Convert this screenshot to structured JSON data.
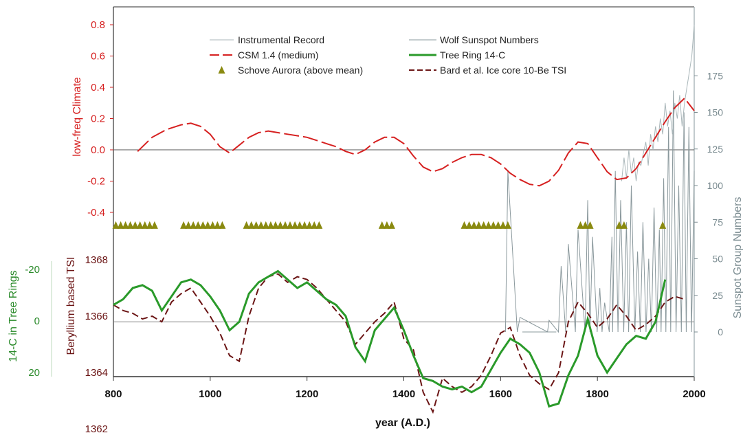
{
  "chart_data": {
    "type": "line",
    "xlabel": "year (A.D.)",
    "x_ticks": [
      800,
      1000,
      1200,
      1400,
      1600,
      1800,
      2000
    ],
    "xlim": [
      800,
      2000
    ],
    "axes": {
      "climate": {
        "label": "low-freq Climate",
        "color": "#d62020",
        "ylim": [
          -0.45,
          0.85
        ],
        "ticks": [
          "0.8",
          "0.6",
          "0.4",
          "0.2",
          "0.0",
          "-0.2",
          "-0.4"
        ],
        "tick_values": [
          0.8,
          0.6,
          0.4,
          0.2,
          0.0,
          -0.2,
          -0.4
        ]
      },
      "tsi": {
        "label": "Beryllium based TSI",
        "color": "#6b1515",
        "ylim": [
          1361.2,
          1368.4
        ],
        "ticks": [
          "1368",
          "1366",
          "1364",
          "1362"
        ],
        "tick_values": [
          1368,
          1366,
          1364,
          1362
        ]
      },
      "c14": {
        "label": "14-C in Tree Rings",
        "color": "#2a8a2a",
        "ticks": [
          "-20",
          "0",
          "20"
        ],
        "tick_values": [
          -20,
          0,
          20
        ],
        "inverted": true
      },
      "sunspot": {
        "label": "Sunspot Group Numbers",
        "color": "#7a8b90",
        "ylim": [
          -35,
          190
        ],
        "ticks": [
          "175",
          "150",
          "125",
          "100",
          "75",
          "50",
          "25",
          "0"
        ],
        "tick_values": [
          175,
          150,
          125,
          100,
          75,
          50,
          25,
          0
        ]
      }
    },
    "legend": {
      "placement": "top",
      "entries": [
        {
          "label": "Instrumental Record",
          "color": "#a9b6b9",
          "style": "thin"
        },
        {
          "label": "Wolf Sunspot Numbers",
          "color": "#8a989c",
          "style": "thin"
        },
        {
          "label": "CSM 1.4 (medium)",
          "color": "#d62020",
          "style": "long-dash"
        },
        {
          "label": "Tree Ring 14-C",
          "color": "#2a9a2a",
          "style": "solid-thick"
        },
        {
          "label": "Schove Aurora (above mean)",
          "color": "#8a8a10",
          "style": "triangle"
        },
        {
          "label": "Bard et al. Ice core 10-Be TSI",
          "color": "#6b1515",
          "style": "dash"
        }
      ]
    },
    "series": {
      "csm": {
        "axis": "climate",
        "x": [
          850,
          880,
          910,
          940,
          960,
          980,
          1000,
          1020,
          1040,
          1060,
          1080,
          1100,
          1120,
          1140,
          1160,
          1180,
          1200,
          1220,
          1240,
          1260,
          1280,
          1300,
          1320,
          1340,
          1360,
          1380,
          1400,
          1420,
          1440,
          1460,
          1480,
          1500,
          1520,
          1540,
          1560,
          1580,
          1600,
          1620,
          1640,
          1660,
          1680,
          1700,
          1720,
          1740,
          1760,
          1780,
          1800,
          1820,
          1840,
          1860,
          1880,
          1900,
          1920,
          1940,
          1960,
          1980,
          2000
        ],
        "y": [
          -0.01,
          0.08,
          0.13,
          0.16,
          0.17,
          0.15,
          0.1,
          0.02,
          -0.02,
          0.03,
          0.08,
          0.11,
          0.12,
          0.11,
          0.1,
          0.09,
          0.08,
          0.06,
          0.04,
          0.02,
          -0.01,
          -0.03,
          0.0,
          0.05,
          0.08,
          0.08,
          0.04,
          -0.04,
          -0.11,
          -0.14,
          -0.12,
          -0.08,
          -0.05,
          -0.03,
          -0.03,
          -0.05,
          -0.09,
          -0.15,
          -0.19,
          -0.22,
          -0.23,
          -0.2,
          -0.13,
          -0.02,
          0.05,
          0.04,
          -0.05,
          -0.14,
          -0.19,
          -0.18,
          -0.12,
          -0.02,
          0.08,
          0.18,
          0.27,
          0.33,
          0.25
        ]
      },
      "tree_ring": {
        "axis": "tsi",
        "x": [
          800,
          820,
          840,
          860,
          880,
          900,
          920,
          940,
          960,
          980,
          1000,
          1020,
          1040,
          1060,
          1080,
          1100,
          1120,
          1140,
          1160,
          1180,
          1200,
          1220,
          1240,
          1260,
          1280,
          1300,
          1320,
          1340,
          1360,
          1380,
          1400,
          1420,
          1440,
          1460,
          1480,
          1500,
          1520,
          1540,
          1560,
          1580,
          1600,
          1620,
          1640,
          1660,
          1680,
          1700,
          1720,
          1740,
          1760,
          1780,
          1800,
          1820,
          1840,
          1860,
          1880,
          1900,
          1920,
          1940
        ],
        "y": [
          1366.4,
          1366.6,
          1367.0,
          1367.1,
          1366.9,
          1366.2,
          1366.7,
          1367.2,
          1367.3,
          1367.1,
          1366.7,
          1366.2,
          1365.5,
          1365.8,
          1366.8,
          1367.2,
          1367.4,
          1367.6,
          1367.3,
          1367.0,
          1367.2,
          1366.9,
          1366.6,
          1366.4,
          1366.0,
          1364.9,
          1364.4,
          1365.5,
          1365.9,
          1366.3,
          1365.5,
          1364.6,
          1363.8,
          1363.7,
          1363.5,
          1363.4,
          1363.5,
          1363.3,
          1363.5,
          1364.1,
          1364.7,
          1365.2,
          1365.0,
          1364.7,
          1364.0,
          1362.8,
          1362.9,
          1363.9,
          1364.6,
          1365.9,
          1364.6,
          1364.0,
          1364.5,
          1365.0,
          1365.3,
          1365.2,
          1365.8,
          1367.3
        ]
      },
      "bard_tsi": {
        "axis": "tsi",
        "x": [
          800,
          820,
          840,
          860,
          880,
          900,
          920,
          940,
          960,
          980,
          1000,
          1020,
          1040,
          1060,
          1080,
          1100,
          1120,
          1140,
          1160,
          1180,
          1200,
          1220,
          1240,
          1260,
          1280,
          1300,
          1320,
          1340,
          1360,
          1380,
          1400,
          1420,
          1440,
          1460,
          1480,
          1500,
          1520,
          1540,
          1560,
          1580,
          1600,
          1620,
          1640,
          1660,
          1680,
          1700,
          1720,
          1740,
          1760,
          1780,
          1800,
          1820,
          1840,
          1860,
          1880,
          1900,
          1920,
          1940,
          1960,
          1980
        ],
        "y": [
          1366.4,
          1366.2,
          1366.1,
          1365.9,
          1366.0,
          1365.8,
          1366.5,
          1366.8,
          1367.0,
          1366.5,
          1366.0,
          1365.4,
          1364.6,
          1364.4,
          1366.0,
          1367.0,
          1367.4,
          1367.5,
          1367.2,
          1367.4,
          1367.3,
          1367.0,
          1366.6,
          1366.2,
          1365.8,
          1365.0,
          1365.4,
          1365.8,
          1366.1,
          1366.5,
          1365.2,
          1364.8,
          1363.3,
          1362.6,
          1363.8,
          1363.5,
          1363.3,
          1363.5,
          1363.9,
          1364.6,
          1365.4,
          1365.6,
          1364.6,
          1363.9,
          1363.6,
          1363.4,
          1364.0,
          1365.8,
          1366.5,
          1366.1,
          1365.6,
          1365.9,
          1366.4,
          1366.0,
          1365.5,
          1365.7,
          1366.0,
          1366.5,
          1366.7,
          1366.6
        ]
      },
      "instrumental": {
        "axis": "climate",
        "x": [
          1850,
          1855,
          1860,
          1865,
          1870,
          1875,
          1880,
          1885,
          1890,
          1895,
          1900,
          1905,
          1910,
          1915,
          1920,
          1925,
          1930,
          1935,
          1940,
          1945,
          1950,
          1955,
          1960,
          1965,
          1970,
          1975,
          1980,
          1985,
          1990,
          1995,
          2000
        ],
        "y": [
          -0.2,
          -0.05,
          -0.18,
          0.0,
          -0.15,
          -0.05,
          -0.2,
          -0.08,
          -0.1,
          -0.02,
          0.05,
          -0.1,
          0.1,
          0.0,
          0.15,
          0.05,
          0.2,
          0.1,
          0.3,
          0.15,
          0.25,
          0.1,
          0.3,
          0.2,
          0.35,
          0.15,
          0.3,
          0.4,
          0.5,
          0.6,
          0.8
        ]
      },
      "sunspots": {
        "axis": "sunspot",
        "description_free": true,
        "x_start": 1610,
        "x_end": 2000,
        "cycle_years": 11,
        "quiet_period": [
          1645,
          1715
        ],
        "peaks": [
          [
            1615,
            110
          ],
          [
            1640,
            10
          ],
          [
            1700,
            8
          ],
          [
            1725,
            45
          ],
          [
            1740,
            60
          ],
          [
            1760,
            70
          ],
          [
            1780,
            90
          ],
          [
            1790,
            65
          ],
          [
            1805,
            30
          ],
          [
            1815,
            20
          ],
          [
            1830,
            65
          ],
          [
            1837,
            110
          ],
          [
            1848,
            90
          ],
          [
            1860,
            75
          ],
          [
            1870,
            100
          ],
          [
            1883,
            55
          ],
          [
            1894,
            75
          ],
          [
            1906,
            50
          ],
          [
            1917,
            85
          ],
          [
            1928,
            70
          ],
          [
            1937,
            105
          ],
          [
            1947,
            140
          ],
          [
            1957,
            165
          ],
          [
            1968,
            100
          ],
          [
            1979,
            150
          ],
          [
            1989,
            140
          ],
          [
            2000,
            110
          ]
        ]
      },
      "aurora": {
        "y": -0.47,
        "x": [
          805,
          815,
          825,
          835,
          845,
          855,
          865,
          875,
          885,
          945,
          955,
          965,
          975,
          985,
          995,
          1005,
          1015,
          1025,
          1075,
          1085,
          1095,
          1105,
          1115,
          1125,
          1135,
          1145,
          1155,
          1165,
          1175,
          1185,
          1195,
          1205,
          1215,
          1225,
          1355,
          1365,
          1375,
          1525,
          1535,
          1545,
          1555,
          1565,
          1575,
          1585,
          1595,
          1605,
          1615,
          1765,
          1775,
          1785,
          1845,
          1855,
          1935
        ]
      }
    },
    "reference_lines": {
      "climate_zero": 0.0,
      "tsi_mean": 1365.8
    }
  }
}
